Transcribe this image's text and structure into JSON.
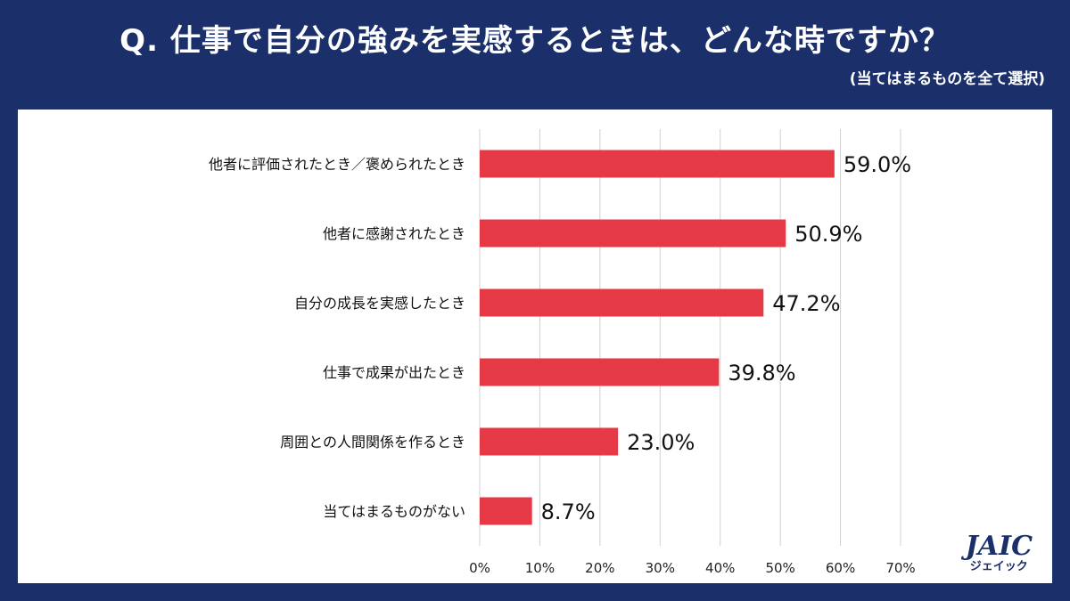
{
  "header": {
    "title": "Q. 仕事で自分の強みを実感するときは、どんな時ですか？",
    "subtitle": "(当てはまるものを全て選択)"
  },
  "logo": {
    "main": "JAIC",
    "sub": "ジェイック"
  },
  "colors": {
    "background": "#1b2f6b",
    "bar": "#e63946",
    "panel": "#ffffff",
    "grid": "#d0d0d0"
  },
  "chart_data": {
    "type": "bar",
    "orientation": "horizontal",
    "categories": [
      "他者に評価されたとき／褒められたとき",
      "他者に感謝されたとき",
      "自分の成長を実感したとき",
      "仕事で成果が出たとき",
      "周囲との人間関係を作るとき",
      "当てはまるものがない"
    ],
    "values": [
      59.0,
      50.9,
      47.2,
      39.8,
      23.0,
      8.7
    ],
    "value_labels": [
      "59.0%",
      "50.9%",
      "47.2%",
      "39.8%",
      "23.0%",
      "8.7%"
    ],
    "xlim": [
      0,
      70
    ],
    "ticks": [
      0,
      10,
      20,
      30,
      40,
      50,
      60,
      70
    ],
    "tick_labels": [
      "0%",
      "10%",
      "20%",
      "30%",
      "40%",
      "50%",
      "60%",
      "70%"
    ],
    "grid": true
  }
}
